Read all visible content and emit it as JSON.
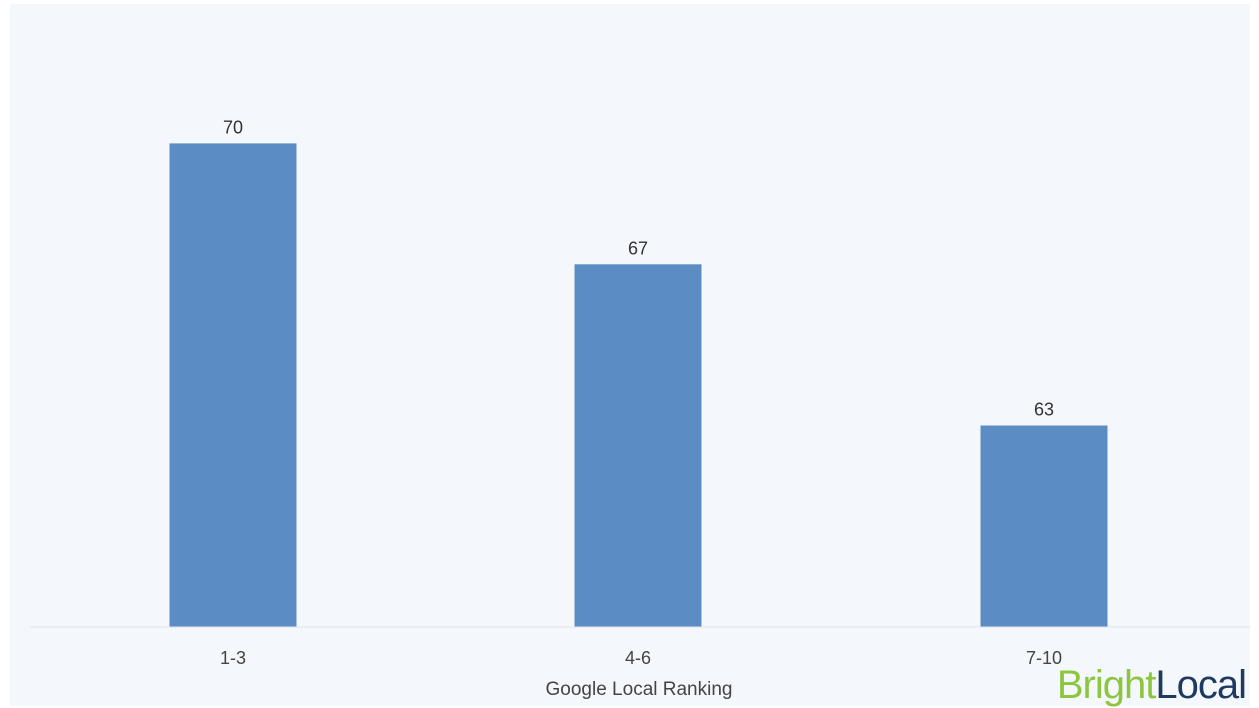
{
  "chart_data": {
    "type": "bar",
    "categories": [
      "1-3",
      "4-6",
      "7-10"
    ],
    "values": [
      70,
      67,
      63
    ],
    "title": "",
    "xlabel": "Google Local Ranking",
    "ylabel": "",
    "ylim": [
      58,
      72
    ],
    "grid": false,
    "legend": "none",
    "bar_color": "#5b8cc4",
    "background_color": "#f4f7fb"
  },
  "logo": {
    "part1": "Bright",
    "part2": "Local",
    "part1_color": "#8cc63f",
    "part2_color": "#1e3a5f"
  }
}
